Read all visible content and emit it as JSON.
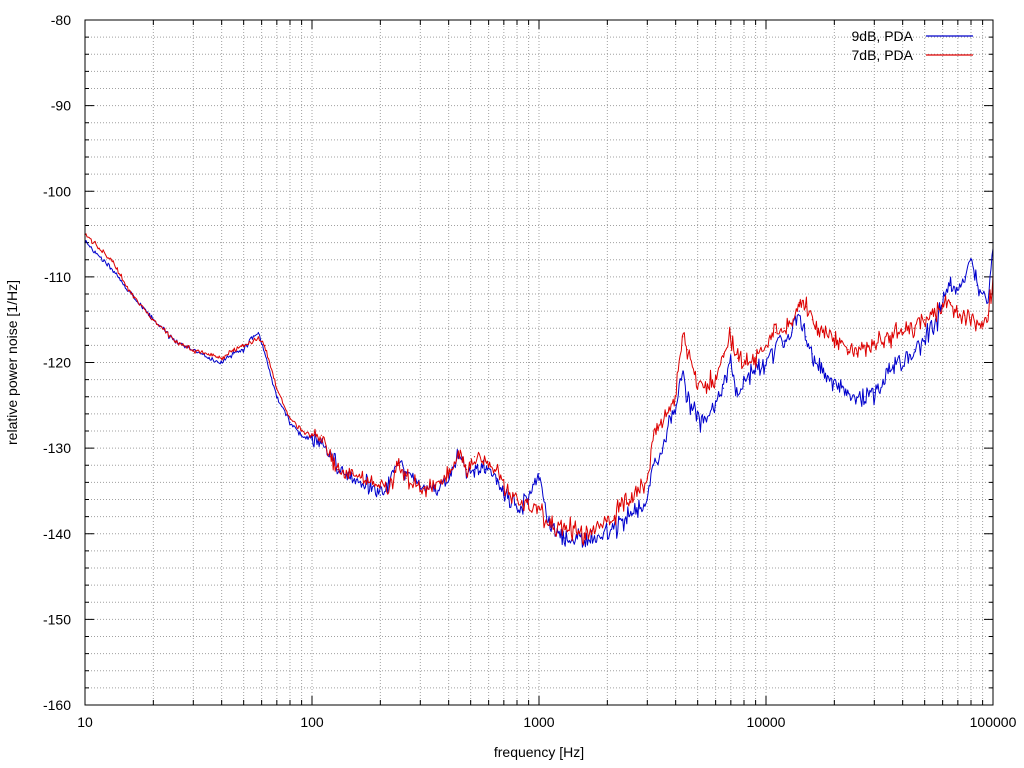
{
  "chart_data": {
    "type": "line",
    "title": "",
    "xlabel": "frequency [Hz]",
    "ylabel": "relative power noise [1/Hz]",
    "xscale": "log",
    "xlim": [
      10,
      100000
    ],
    "ylim": [
      -160,
      -80
    ],
    "grid": true,
    "legend_position": "top-right",
    "x_ticks": [
      {
        "value": 10,
        "label": "10"
      },
      {
        "value": 100,
        "label": "100"
      },
      {
        "value": 1000,
        "label": "1000"
      },
      {
        "value": 10000,
        "label": "10000"
      },
      {
        "value": 100000,
        "label": "100000"
      }
    ],
    "y_ticks": [
      {
        "value": -80,
        "label": "-80"
      },
      {
        "value": -90,
        "label": "-90"
      },
      {
        "value": -100,
        "label": "-100"
      },
      {
        "value": -110,
        "label": "-110"
      },
      {
        "value": -120,
        "label": "-120"
      },
      {
        "value": -130,
        "label": "-130"
      },
      {
        "value": -140,
        "label": "-140"
      },
      {
        "value": -150,
        "label": "-150"
      },
      {
        "value": -160,
        "label": "-160"
      }
    ],
    "series": [
      {
        "name": "9dB, PDA",
        "color": "#0000cc",
        "x": [
          10,
          13,
          16,
          20,
          25,
          30,
          35,
          40,
          45,
          50,
          55,
          58,
          62,
          70,
          80,
          90,
          100,
          110,
          120,
          130,
          150,
          180,
          200,
          220,
          240,
          260,
          300,
          350,
          400,
          450,
          480,
          520,
          580,
          650,
          700,
          800,
          900,
          1000,
          1100,
          1300,
          1600,
          2000,
          2500,
          3000,
          3200,
          3500,
          4000,
          4300,
          4500,
          5000,
          5500,
          6000,
          6500,
          7000,
          7500,
          8000,
          9000,
          10000,
          11000,
          12000,
          13000,
          14000,
          15000,
          16000,
          17000,
          20000,
          23000,
          25000,
          27000,
          30000,
          35000,
          40000,
          45000,
          50000,
          55000,
          60000,
          65000,
          70000,
          75000,
          80000,
          85000,
          90000,
          95000,
          100000
        ],
        "y": [
          -106,
          -109,
          -112,
          -115,
          -117.5,
          -118.5,
          -119.5,
          -120,
          -119,
          -118.5,
          -117,
          -116.5,
          -119,
          -124,
          -127,
          -128.5,
          -129,
          -129.5,
          -130.5,
          -132.5,
          -133.5,
          -134.5,
          -135.5,
          -134,
          -131.5,
          -133,
          -134.5,
          -135,
          -133.5,
          -130.5,
          -133,
          -132.5,
          -132.5,
          -133.5,
          -135.5,
          -137,
          -136,
          -133,
          -139,
          -140.5,
          -140.5,
          -140,
          -138,
          -136,
          -132,
          -130,
          -125,
          -121,
          -124,
          -126.5,
          -126.5,
          -125,
          -123,
          -120,
          -124,
          -122,
          -121,
          -120,
          -118,
          -117.5,
          -116.5,
          -114,
          -117,
          -119,
          -120.5,
          -122.5,
          -123.5,
          -124.5,
          -124,
          -123.5,
          -121,
          -120,
          -118.5,
          -117,
          -116,
          -113,
          -111,
          -112,
          -110,
          -108,
          -111,
          -112,
          -113,
          -106
        ]
      },
      {
        "name": "7dB, PDA",
        "color": "#dd0000",
        "x": [
          10,
          13,
          16,
          20,
          25,
          30,
          35,
          40,
          45,
          50,
          55,
          58,
          62,
          70,
          80,
          90,
          100,
          110,
          120,
          130,
          150,
          180,
          200,
          220,
          240,
          260,
          300,
          350,
          400,
          450,
          480,
          520,
          580,
          650,
          700,
          800,
          900,
          1000,
          1100,
          1300,
          1600,
          2000,
          2500,
          3000,
          3200,
          3500,
          4000,
          4300,
          4500,
          5000,
          5500,
          6000,
          6500,
          7000,
          7500,
          8000,
          9000,
          10000,
          11000,
          12000,
          13000,
          14000,
          15000,
          16000,
          17000,
          20000,
          23000,
          25000,
          27000,
          30000,
          35000,
          40000,
          45000,
          50000,
          55000,
          60000,
          65000,
          70000,
          75000,
          80000,
          85000,
          90000,
          95000,
          100000
        ],
        "y": [
          -105,
          -108,
          -112,
          -115,
          -117.5,
          -118.5,
          -119,
          -119.5,
          -118.5,
          -118,
          -117.5,
          -117,
          -118,
          -123,
          -126.5,
          -128,
          -128.5,
          -128.5,
          -131,
          -132.5,
          -133,
          -134,
          -134.5,
          -134.5,
          -132,
          -133.5,
          -134.5,
          -134.5,
          -133,
          -130.5,
          -132.5,
          -131,
          -131.5,
          -132.5,
          -134.5,
          -136,
          -137,
          -137,
          -139,
          -139.5,
          -140,
          -138.5,
          -136,
          -133.5,
          -128.5,
          -127.5,
          -124,
          -117,
          -118.5,
          -123,
          -123,
          -121.5,
          -119,
          -117,
          -119.5,
          -120,
          -119.5,
          -118,
          -116.5,
          -116,
          -115.5,
          -113,
          -113.5,
          -115,
          -116,
          -117.5,
          -118.5,
          -119,
          -118,
          -117.5,
          -117,
          -116.5,
          -116,
          -115,
          -114,
          -113.5,
          -113,
          -114,
          -114.5,
          -115,
          -115.5,
          -116,
          -114.5,
          -110
        ]
      }
    ]
  }
}
